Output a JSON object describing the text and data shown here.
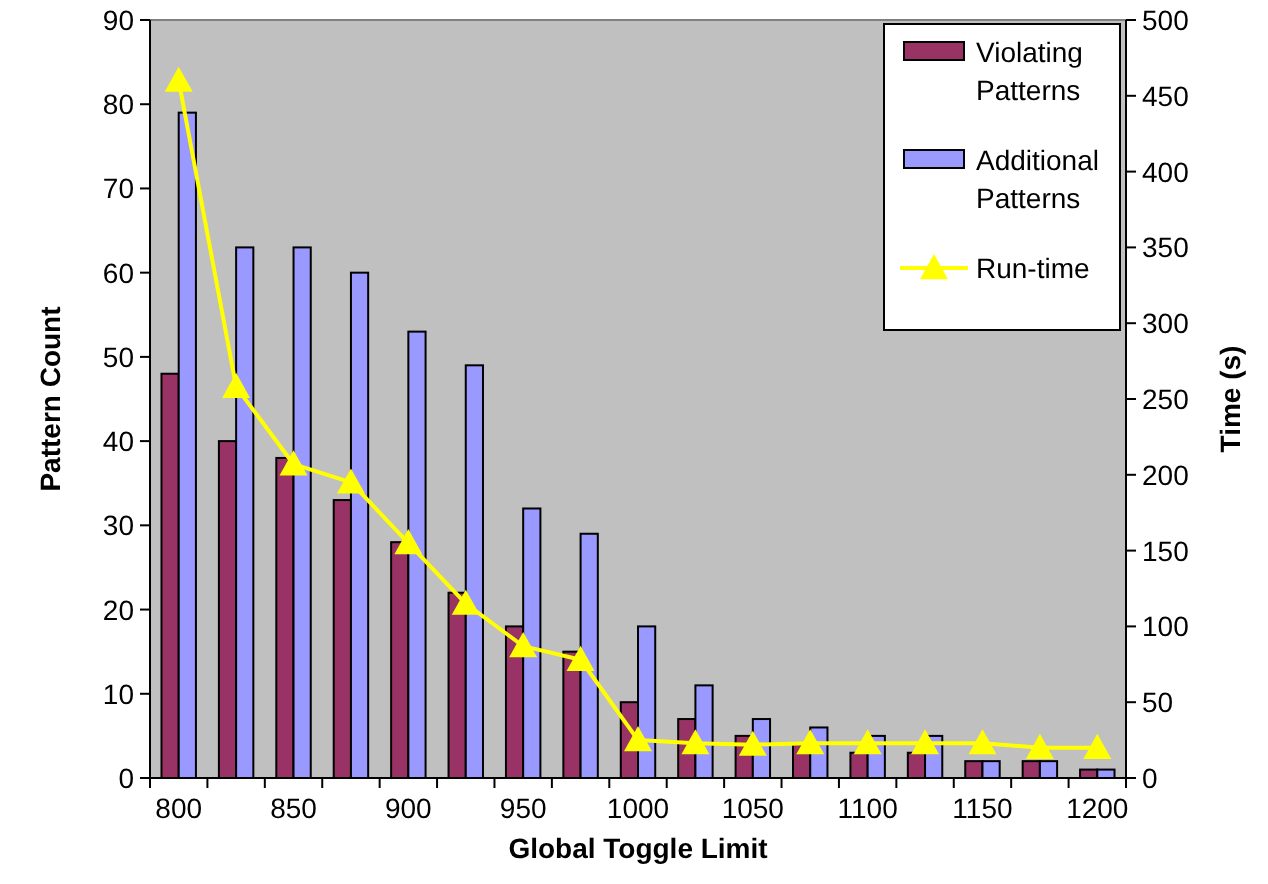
{
  "chart_data": {
    "type": "bar",
    "xlabel": "Global Toggle Limit",
    "ylabel": "Pattern Count",
    "y2label": "Time (s)",
    "categories": [
      "800",
      null,
      "850",
      null,
      "900",
      null,
      "950",
      null,
      "1000",
      null,
      "1050",
      null,
      "1100",
      null,
      "1150",
      null,
      "1200"
    ],
    "series": [
      {
        "name": "Violating Patterns",
        "color": "#993366",
        "values": [
          48,
          40,
          38,
          33,
          28,
          22,
          18,
          15,
          9,
          7,
          5,
          4,
          3,
          3,
          2,
          2,
          1
        ]
      },
      {
        "name": "Additional Patterns",
        "color": "#9999ff",
        "values": [
          79,
          63,
          63,
          60,
          53,
          49,
          32,
          29,
          18,
          11,
          7,
          6,
          5,
          5,
          2,
          2,
          1
        ]
      },
      {
        "name": "Run-time",
        "type": "line",
        "axis": "y2",
        "color": "#ffff00",
        "marker": "triangle",
        "values": [
          460,
          258,
          207,
          195,
          155,
          115,
          87,
          78,
          25,
          23,
          22,
          23,
          23,
          23,
          23,
          20,
          20
        ]
      }
    ],
    "ylim": [
      0,
      90
    ],
    "yticks": [
      0,
      10,
      20,
      30,
      40,
      50,
      60,
      70,
      80,
      90
    ],
    "y2lim": [
      0,
      500
    ],
    "y2ticks": [
      0,
      50,
      100,
      150,
      200,
      250,
      300,
      350,
      400,
      450,
      500
    ],
    "legend": "top right",
    "grid": false
  }
}
